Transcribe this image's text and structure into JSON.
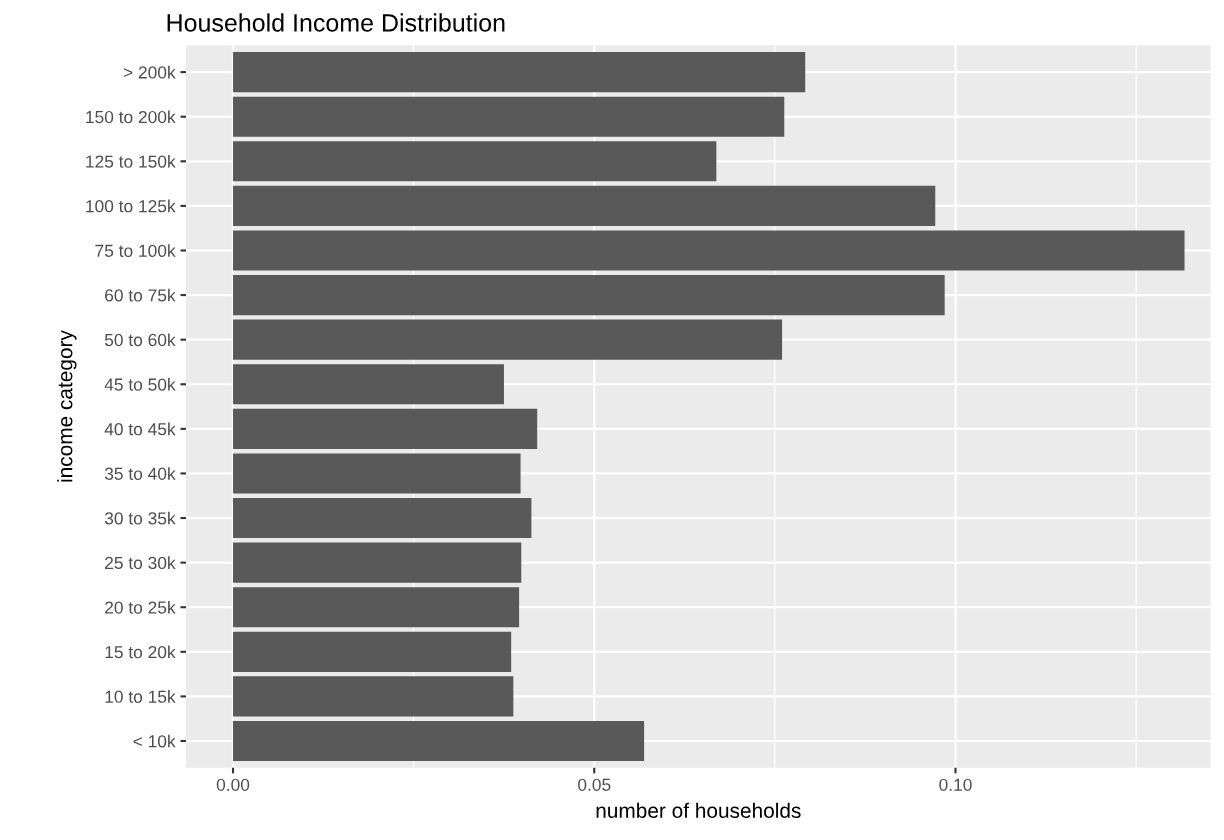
{
  "chart_data": {
    "type": "bar",
    "orientation": "horizontal",
    "title": "Household Income Distribution",
    "xlabel": "number of households",
    "ylabel": "income category",
    "categories": [
      "> 200k",
      "150 to 200k",
      "125 to 150k",
      "100 to 125k",
      "75 to 100k",
      "60 to 75k",
      "50 to 60k",
      "45 to 50k",
      "40 to 45k",
      "35 to 40k",
      "30 to 35k",
      "25 to 30k",
      "20 to 25k",
      "15 to 20k",
      "10 to 15k",
      "< 10k"
    ],
    "values": [
      0.0792,
      0.0763,
      0.0669,
      0.0972,
      0.1317,
      0.0985,
      0.076,
      0.0375,
      0.0421,
      0.0398,
      0.0413,
      0.0399,
      0.0396,
      0.0385,
      0.0388,
      0.0569
    ],
    "color": "#595959",
    "xlim": [
      -0.0065,
      0.1353
    ],
    "xticks": [
      {
        "value": 0,
        "label": "0.00"
      },
      {
        "value": 0.025,
        "label": null
      },
      {
        "value": 0.05,
        "label": "0.05"
      },
      {
        "value": 0.075,
        "label": null
      },
      {
        "value": 0.1,
        "label": "0.10"
      },
      {
        "value": 0.125,
        "label": null
      }
    ],
    "grid": true
  }
}
